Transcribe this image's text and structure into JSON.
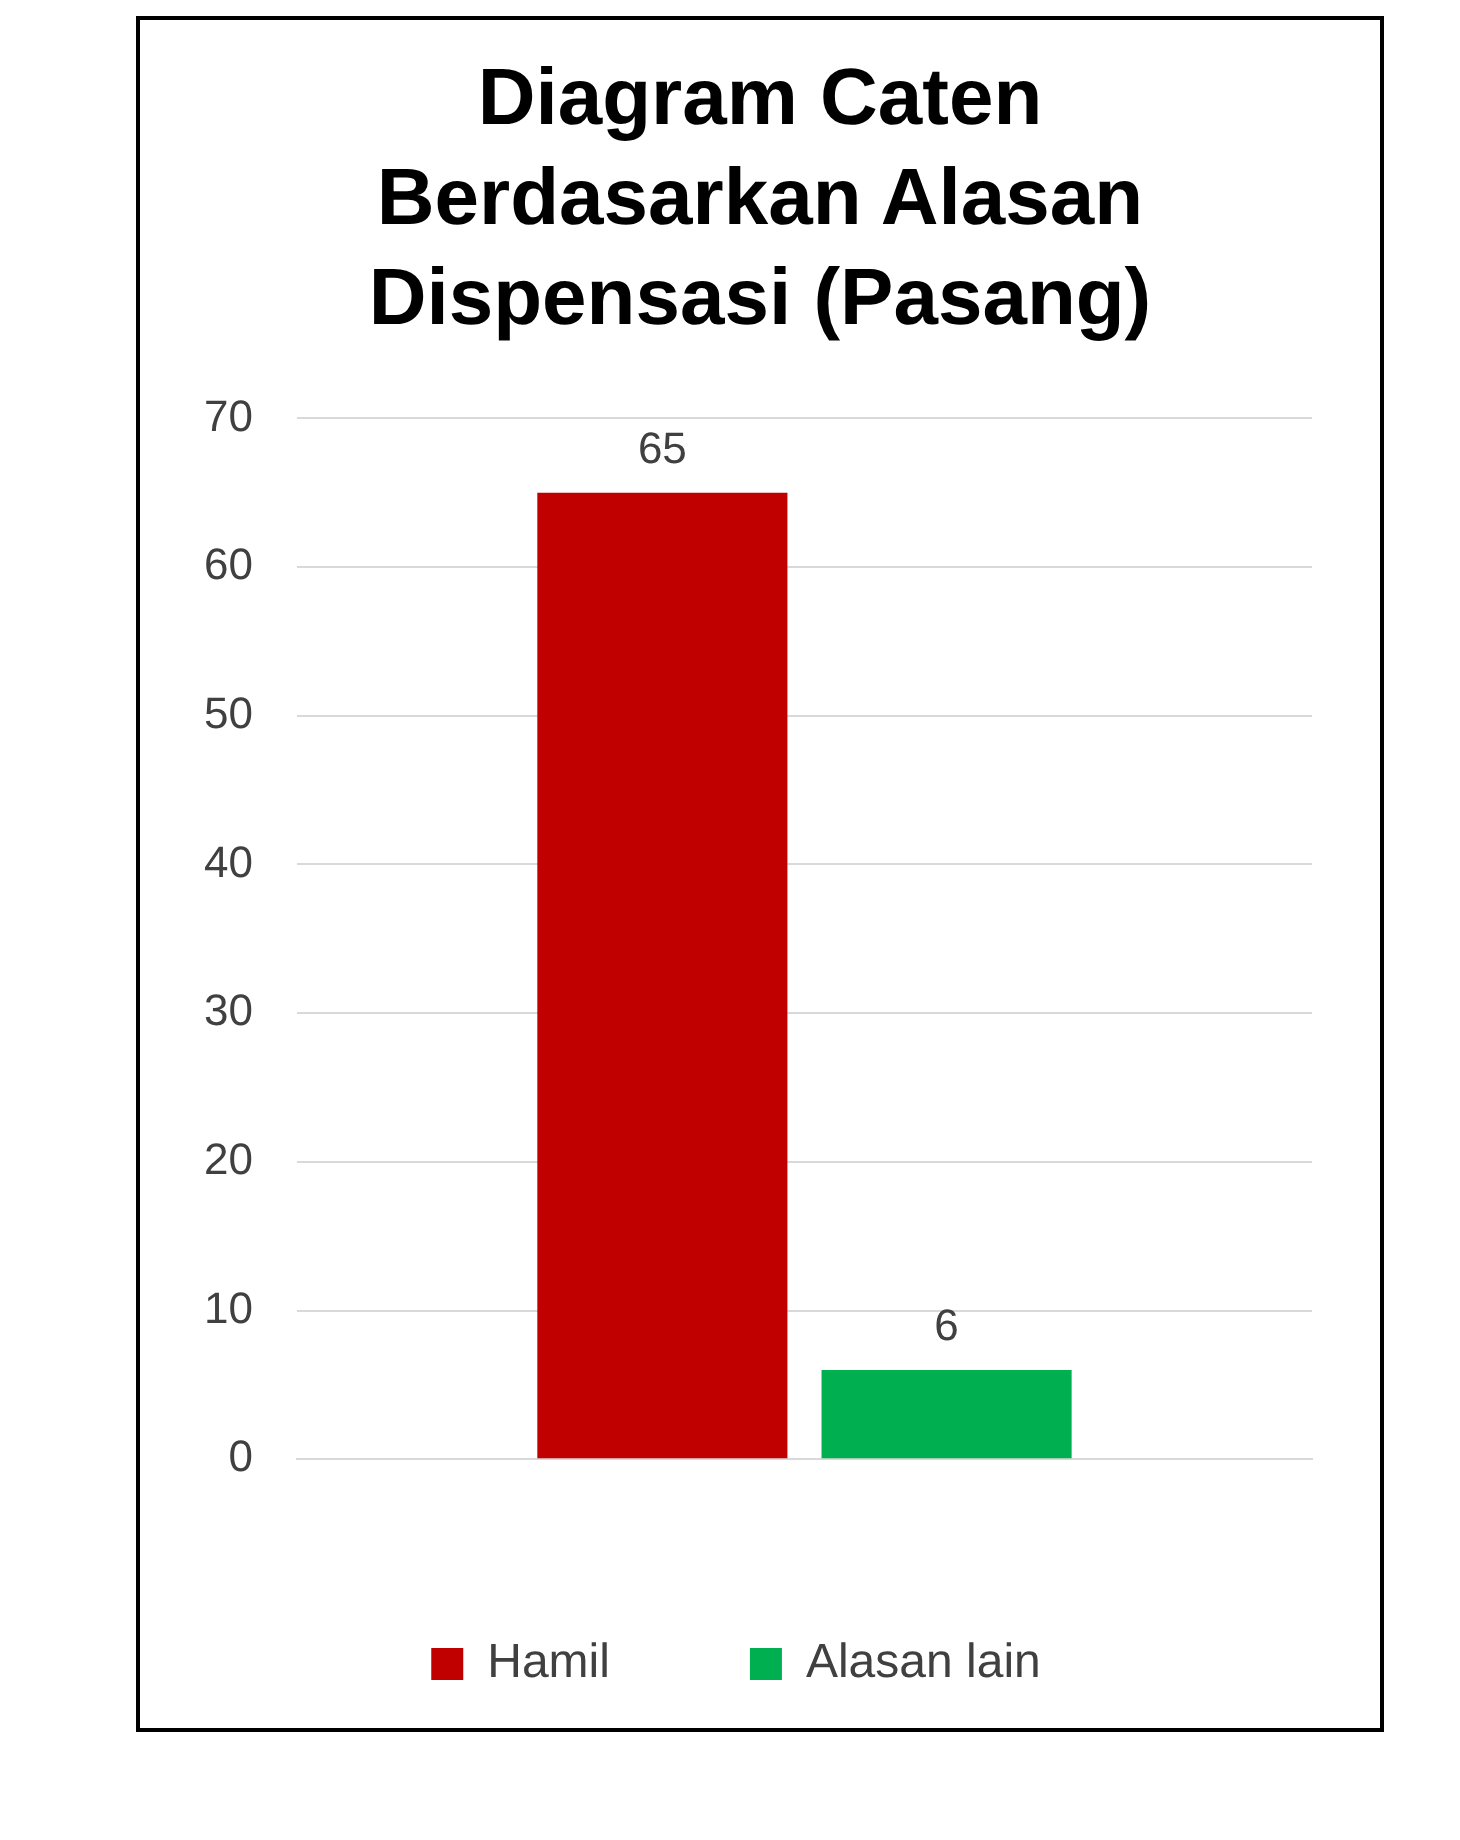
{
  "chart_data": {
    "type": "bar",
    "title": "Diagram Caten Berdasarkan Alasan Dispensasi  (Pasang)",
    "categories": [
      null
    ],
    "series": [
      {
        "name": "Hamil",
        "color": "#c00000",
        "values": [
          65
        ]
      },
      {
        "name": "Alasan lain",
        "color": "#00b050",
        "values": [
          6
        ]
      }
    ],
    "ylim": [
      0,
      70
    ],
    "yticks": [
      0,
      10,
      20,
      30,
      40,
      50,
      60,
      70
    ],
    "grid": "y",
    "legend": "bottom",
    "data_labels": true
  }
}
